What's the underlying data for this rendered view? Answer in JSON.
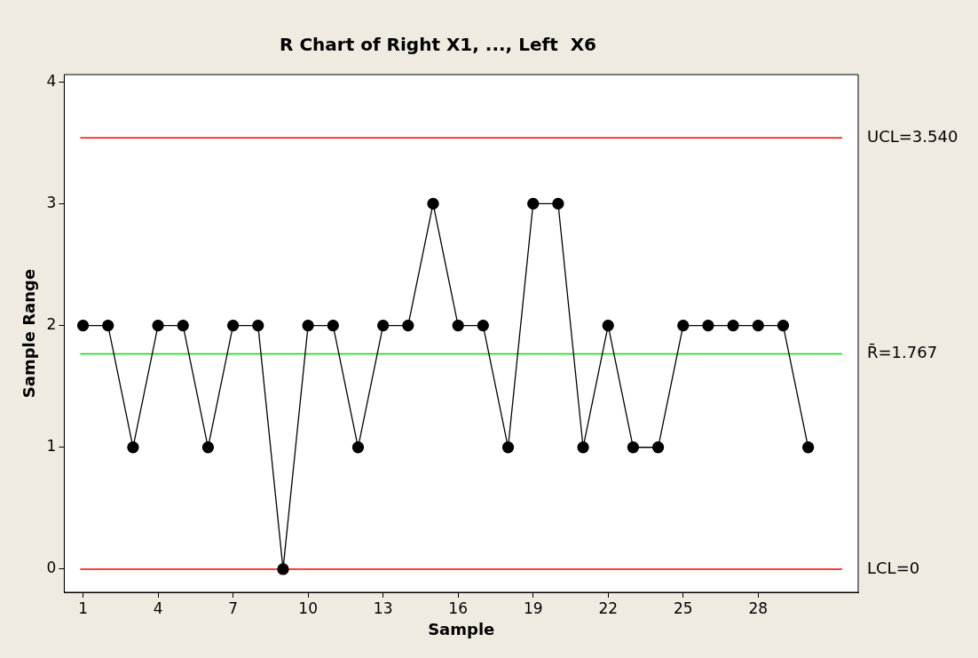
{
  "chart_data": {
    "type": "line",
    "title": "R Chart of Right X1, ..., Left  X6",
    "xlabel": "Sample",
    "ylabel": "Sample Range",
    "x": [
      1,
      2,
      3,
      4,
      5,
      6,
      7,
      8,
      9,
      10,
      11,
      12,
      13,
      14,
      15,
      16,
      17,
      18,
      19,
      20,
      21,
      22,
      23,
      24,
      25,
      26,
      27,
      28,
      29,
      30
    ],
    "series": [
      {
        "color": "#000000",
        "values": [
          2,
          2,
          1,
          2,
          2,
          1,
          2,
          2,
          0,
          2,
          2,
          1,
          2,
          2,
          3,
          2,
          2,
          1,
          3,
          3,
          1,
          2,
          1,
          1,
          2,
          2,
          2,
          2,
          2,
          1
        ]
      }
    ],
    "xlim": [
      0.25,
      32
    ],
    "xticks": [
      1,
      4,
      7,
      10,
      13,
      16,
      19,
      22,
      25,
      28
    ],
    "ylim": [
      -0.19,
      4.06
    ],
    "yticks": [
      0,
      1,
      2,
      3,
      4
    ],
    "ref_lines": [
      {
        "axis": "y",
        "value": 3.54,
        "label": "UCL=3.540",
        "color": "#ff0000"
      },
      {
        "axis": "y",
        "value": 1.767,
        "label": "R̄=1.767",
        "color": "#00e000"
      },
      {
        "axis": "y",
        "value": 0,
        "label": "LCL=0",
        "color": "#ff0000"
      }
    ],
    "grid": false,
    "legend": false,
    "marker": "circle",
    "line_style": "solid"
  }
}
